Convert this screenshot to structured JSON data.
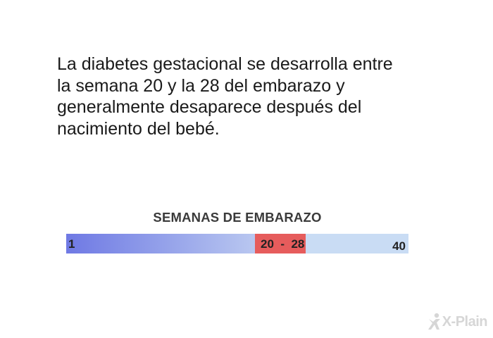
{
  "main_text": {
    "lines": [
      "La diabetes gestacional se desarrolla entre",
      "la semana 20 y la 28 del embarazo y",
      "generalmente desaparece después del",
      "nacimiento del bebé."
    ]
  },
  "timeline": {
    "title": "SEMANAS DE EMBARAZO",
    "start_label": "1",
    "range_label": "20  -  28",
    "end_label": "40",
    "start_week": 1,
    "range_start_week": 20,
    "range_end_week": 28,
    "end_week": 40,
    "colors": {
      "early_start": "#6f79e4",
      "early_end": "#b9c7f0",
      "gestational": "#e65c5c",
      "late": "#c9dcf4"
    }
  },
  "logo": {
    "text": "X-Plain"
  }
}
